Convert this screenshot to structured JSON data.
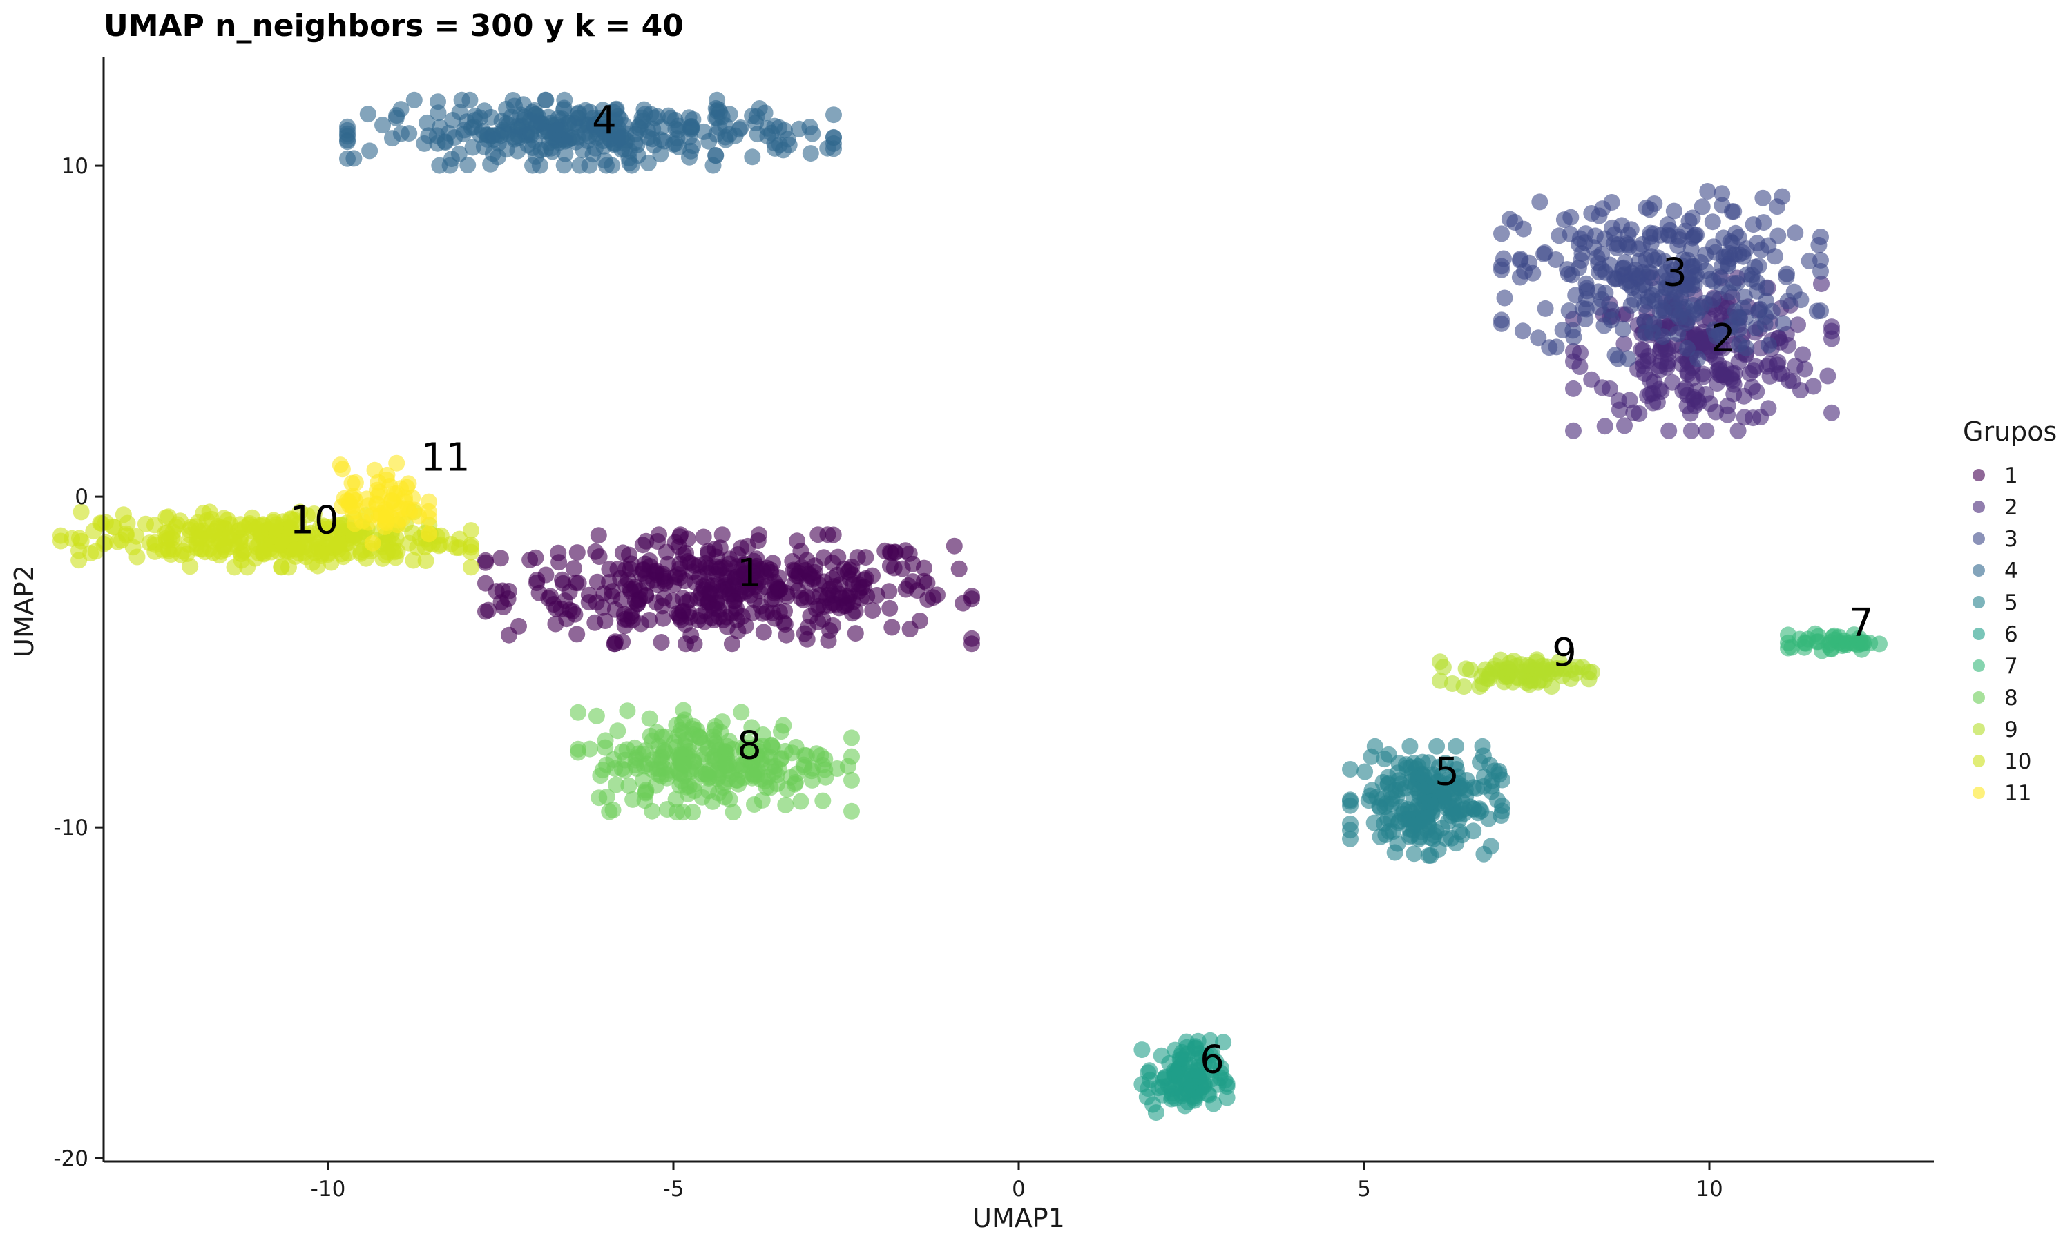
{
  "chart_data": {
    "type": "scatter",
    "title": "UMAP n_neighbors = 300 y k = 40",
    "xlabel": "UMAP1",
    "ylabel": "UMAP2",
    "xlim": [
      -13.25,
      13.25
    ],
    "ylim": [
      -20.1,
      13.3
    ],
    "x_ticks": [
      -10,
      -5,
      0,
      5,
      10
    ],
    "x_tick_labels": [
      "-10",
      "-5",
      "0",
      "5",
      "10"
    ],
    "y_ticks": [
      -20,
      -10,
      0,
      10
    ],
    "y_tick_labels": [
      "-20",
      "-10",
      "0",
      "10"
    ],
    "grid": false,
    "legend": {
      "title": "Grupos",
      "placement": "right"
    },
    "series": [
      {
        "name": "1",
        "color": "#440154",
        "center": [
          -4.2,
          -2.8
        ],
        "spread": [
          1.6,
          0.75
        ],
        "n": 420
      },
      {
        "name": "2",
        "color": "#482878",
        "center": [
          9.9,
          4.3
        ],
        "spread": [
          0.85,
          1.05
        ],
        "n": 240
      },
      {
        "name": "3",
        "color": "#3E4A89",
        "center": [
          9.3,
          6.7
        ],
        "spread": [
          1.05,
          1.15
        ],
        "n": 300
      },
      {
        "name": "4",
        "color": "#31688E",
        "center": [
          -6.2,
          11.0
        ],
        "spread": [
          1.6,
          0.45
        ],
        "n": 320
      },
      {
        "name": "5",
        "color": "#26828E",
        "center": [
          5.9,
          -9.2
        ],
        "spread": [
          0.5,
          0.75
        ],
        "n": 220
      },
      {
        "name": "6",
        "color": "#1F9E89",
        "center": [
          2.4,
          -17.6
        ],
        "spread": [
          0.28,
          0.55
        ],
        "n": 110
      },
      {
        "name": "7",
        "color": "#35B779",
        "center": [
          11.8,
          -4.4
        ],
        "spread": [
          0.3,
          0.12
        ],
        "n": 40
      },
      {
        "name": "8",
        "color": "#6DCD59",
        "center": [
          -4.4,
          -8.0
        ],
        "spread": [
          0.9,
          0.7
        ],
        "n": 260
      },
      {
        "name": "9",
        "color": "#B4DE2C",
        "center": [
          7.2,
          -5.3
        ],
        "spread": [
          0.5,
          0.2
        ],
        "n": 80
      },
      {
        "name": "10",
        "color": "#CDE11D",
        "center": [
          -10.9,
          -1.3
        ],
        "spread": [
          1.35,
          0.38
        ],
        "n": 320
      },
      {
        "name": "11",
        "color": "#FDE725",
        "center": [
          -9.2,
          -0.2
        ],
        "spread": [
          0.3,
          0.55
        ],
        "n": 70
      }
    ],
    "cluster_labels": [
      {
        "text": "1",
        "x": -3.9,
        "y": -2.4
      },
      {
        "text": "2",
        "x": 10.2,
        "y": 4.7
      },
      {
        "text": "3",
        "x": 9.5,
        "y": 6.7
      },
      {
        "text": "4",
        "x": -6.0,
        "y": 11.3
      },
      {
        "text": "5",
        "x": 6.2,
        "y": -8.4
      },
      {
        "text": "6",
        "x": 2.8,
        "y": -17.1
      },
      {
        "text": "7",
        "x": 12.2,
        "y": -3.9
      },
      {
        "text": "8",
        "x": -3.9,
        "y": -7.6
      },
      {
        "text": "9",
        "x": 7.9,
        "y": -4.8
      },
      {
        "text": "10",
        "x": -10.2,
        "y": -0.8
      },
      {
        "text": "11",
        "x": -8.3,
        "y": 1.1
      }
    ],
    "legend_entries": [
      {
        "label": "1",
        "color": "#440154"
      },
      {
        "label": "2",
        "color": "#482878"
      },
      {
        "label": "3",
        "color": "#3E4A89"
      },
      {
        "label": "4",
        "color": "#31688E"
      },
      {
        "label": "5",
        "color": "#26828E"
      },
      {
        "label": "6",
        "color": "#1F9E89"
      },
      {
        "label": "7",
        "color": "#35B779"
      },
      {
        "label": "8",
        "color": "#6DCD59"
      },
      {
        "label": "9",
        "color": "#B4DE2C"
      },
      {
        "label": "10",
        "color": "#CDE11D"
      },
      {
        "label": "11",
        "color": "#FDE725"
      }
    ]
  }
}
